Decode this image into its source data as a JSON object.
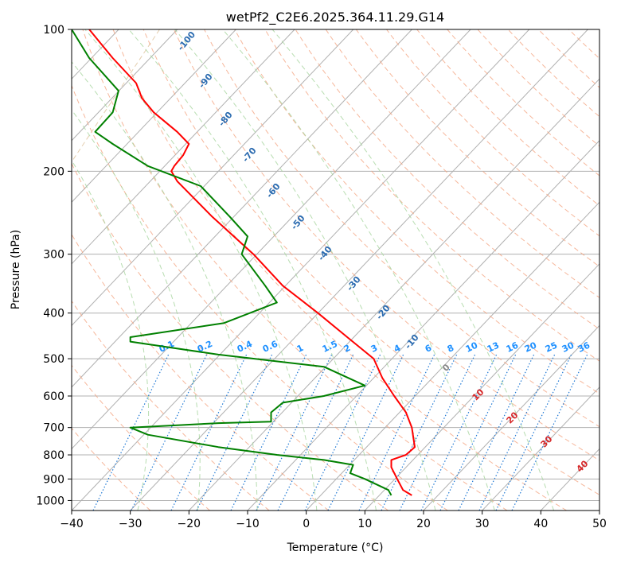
{
  "chart_data": {
    "type": "line",
    "title": "wetPf2_C2E6.2025.364.11.29.G14",
    "xlabel": "Temperature (°C)",
    "ylabel": "Pressure (hPa)",
    "xlim": [
      -40,
      50
    ],
    "ylim": [
      1050,
      100
    ],
    "y_scale": "log",
    "grid": true,
    "x_ticks": [
      -40,
      -30,
      -20,
      -10,
      0,
      10,
      20,
      30,
      40,
      50
    ],
    "y_ticks": [
      1000,
      900,
      800,
      700,
      600,
      500,
      400,
      300,
      200,
      100
    ],
    "series": [
      {
        "role": "temperature",
        "color": "#ff0000",
        "points": [
          [
            18,
            975
          ],
          [
            16.5,
            950
          ],
          [
            15.5,
            900
          ],
          [
            14.5,
            850
          ],
          [
            14.5,
            820
          ],
          [
            17,
            800
          ],
          [
            18.5,
            770
          ],
          [
            18,
            700
          ],
          [
            17,
            650
          ],
          [
            15,
            600
          ],
          [
            13,
            550
          ],
          [
            11.5,
            500
          ],
          [
            7,
            450
          ],
          [
            2,
            400
          ],
          [
            -4,
            350
          ],
          [
            -9,
            300
          ],
          [
            -16,
            250
          ],
          [
            -22,
            210
          ],
          [
            -23,
            200
          ],
          [
            -22.5,
            195
          ],
          [
            -21,
            185
          ],
          [
            -20,
            175
          ],
          [
            -22,
            165
          ],
          [
            -26,
            150
          ],
          [
            -28,
            140
          ],
          [
            -29,
            130
          ],
          [
            -33,
            115
          ],
          [
            -37,
            100
          ]
        ]
      },
      {
        "role": "dewpoint",
        "color": "#008000",
        "points": [
          [
            14.5,
            975
          ],
          [
            14,
            950
          ],
          [
            10,
            900
          ],
          [
            7.5,
            875
          ],
          [
            8,
            840
          ],
          [
            3,
            820
          ],
          [
            -5,
            800
          ],
          [
            -15,
            770
          ],
          [
            -27,
            725
          ],
          [
            -30,
            700
          ],
          [
            -15,
            685
          ],
          [
            -6,
            680
          ],
          [
            -6,
            650
          ],
          [
            -4,
            620
          ],
          [
            3,
            600
          ],
          [
            10,
            570
          ],
          [
            3,
            520
          ],
          [
            -15,
            490
          ],
          [
            -30,
            460
          ],
          [
            -30,
            450
          ],
          [
            -14,
            420
          ],
          [
            -5,
            380
          ],
          [
            -7,
            350
          ],
          [
            -11,
            300
          ],
          [
            -10,
            275
          ],
          [
            -13,
            250
          ],
          [
            -18,
            215
          ],
          [
            -27,
            195
          ],
          [
            -33,
            175
          ],
          [
            -36,
            165
          ],
          [
            -33,
            150
          ],
          [
            -32,
            135
          ],
          [
            -37,
            115
          ],
          [
            -40,
            100
          ]
        ]
      }
    ],
    "isotherm_labels": [
      "-100",
      "-90",
      "-80",
      "-70",
      "-60",
      "-50",
      "-40",
      "-30",
      "-20",
      "-10"
    ],
    "mixing_ratio_labels": [
      "0.1",
      "0.2",
      "0.4",
      "0.6",
      "1",
      "1.5",
      "2",
      "3",
      "4",
      "6",
      "8",
      "10",
      "13",
      "16",
      "20",
      "25",
      "30",
      "36"
    ],
    "dry_adiabat_labels": [
      "0",
      "10",
      "20",
      "30",
      "40"
    ],
    "colors": {
      "isotherm": "#b0b0b0",
      "grid": "#b0b0b0",
      "dry_adiabat": "#f4a582",
      "moist_adiabat": "#a6d49e",
      "mixing_ratio": "#1f78d4",
      "isotherm_label": "#2b6bb0",
      "mixing_label": "#1e90ff",
      "adiabat_label": "#d62728",
      "zero_label": "#888888",
      "curved": "#d8b98c"
    }
  }
}
